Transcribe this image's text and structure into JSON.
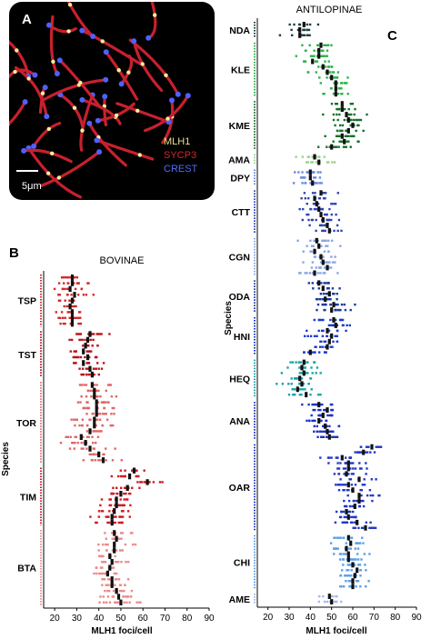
{
  "panel_a": {
    "letter": "A",
    "legend": [
      {
        "label": "MLH1",
        "color": "#e7e08a"
      },
      {
        "label": "SYCP3",
        "color": "#d4242b"
      },
      {
        "label": "CREST",
        "color": "#4f6ef0"
      }
    ],
    "scale_bar": "5μm",
    "colors": {
      "background": "#000000",
      "chromosome": "#c8202e",
      "focus": "#f4ef9a",
      "centromere": "#5060ff"
    }
  },
  "chart_data": [
    {
      "type": "scatter",
      "panel": "B",
      "title": "BOVINAE",
      "xlabel": "MLH1 foci/cell",
      "ylabel": "Species",
      "xlim": [
        15,
        90
      ],
      "xticks": [
        20,
        30,
        40,
        50,
        60,
        70,
        80,
        90
      ],
      "grid": false,
      "species": [
        {
          "label": "TSP",
          "color": "#d42a2a",
          "rows": [
            28,
            28,
            27,
            29,
            28,
            27,
            28,
            28,
            28
          ]
        },
        {
          "label": "TST",
          "color": "#b8141c",
          "rows": [
            36,
            35,
            34,
            33,
            35,
            33,
            36,
            37
          ]
        },
        {
          "label": "TOR",
          "color": "#e06868",
          "rows": [
            37,
            38,
            38,
            39,
            39,
            39,
            38,
            38,
            36,
            32,
            34,
            36,
            40,
            42
          ]
        },
        {
          "label": "TIM",
          "color": "#d01c24",
          "rows": [
            56,
            54,
            62,
            53,
            50,
            48,
            48,
            47,
            46,
            46
          ]
        },
        {
          "label": "BTA",
          "color": "#ec8a8a",
          "rows": [
            47,
            48,
            47,
            47,
            45,
            46,
            45,
            44,
            46,
            46,
            48,
            49,
            50
          ]
        }
      ]
    },
    {
      "type": "scatter",
      "panel": "C",
      "title": "ANTILOPINAE",
      "xlabel": "MLH1 foci/cell",
      "ylabel": "Species",
      "xlim": [
        15,
        90
      ],
      "xticks": [
        20,
        30,
        40,
        50,
        60,
        70,
        80,
        90
      ],
      "grid": false,
      "species": [
        {
          "label": "NDA",
          "color": "#1f3f3f",
          "rows": [
            37,
            35,
            35
          ]
        },
        {
          "label": "KLE",
          "color": "#2db34a",
          "rows": [
            45,
            44,
            44,
            41,
            46,
            48,
            50,
            52,
            52,
            52
          ]
        },
        {
          "label": "KME",
          "color": "#15702c",
          "rows": [
            55,
            55,
            57,
            58,
            60,
            58,
            55,
            56,
            50
          ]
        },
        {
          "label": "AMA",
          "color": "#9ad48a",
          "rows": [
            42,
            44
          ]
        },
        {
          "label": "DPY",
          "color": "#6a8ae0",
          "rows": [
            40,
            40,
            41
          ]
        },
        {
          "label": "CTT",
          "color": "#2f45b8",
          "rows": [
            45,
            42,
            43,
            44,
            45,
            46,
            48,
            49
          ]
        },
        {
          "label": "CGN",
          "color": "#8aa6e6",
          "rows": [
            43,
            44,
            42,
            45,
            46,
            48,
            42
          ]
        },
        {
          "label": "ODA",
          "color": "#1c3aa0",
          "rows": [
            44,
            46,
            49,
            47,
            51,
            50
          ]
        },
        {
          "label": "HNI",
          "color": "#1c3ad0",
          "rows": [
            51,
            52,
            48,
            50,
            49,
            48,
            40
          ]
        },
        {
          "label": "HEQ",
          "color": "#1aa3a8",
          "rows": [
            37,
            36,
            37,
            35,
            36,
            34,
            38
          ]
        },
        {
          "label": "ANA",
          "color": "#1e32c8",
          "rows": [
            44,
            48,
            46,
            44,
            47,
            48,
            49
          ]
        },
        {
          "label": "OAR",
          "color": "#2238c6",
          "rows": [
            69,
            65,
            55,
            58,
            58,
            57,
            63,
            58,
            60,
            63,
            63,
            61,
            57,
            58,
            62,
            66
          ]
        },
        {
          "label": "CHI",
          "color": "#5aa0e8",
          "rows": [
            58,
            59,
            57,
            58,
            58,
            60,
            62,
            61,
            60,
            60
          ]
        },
        {
          "label": "AME",
          "color": "#a8b8ea",
          "rows": [
            49,
            50
          ]
        }
      ]
    }
  ]
}
